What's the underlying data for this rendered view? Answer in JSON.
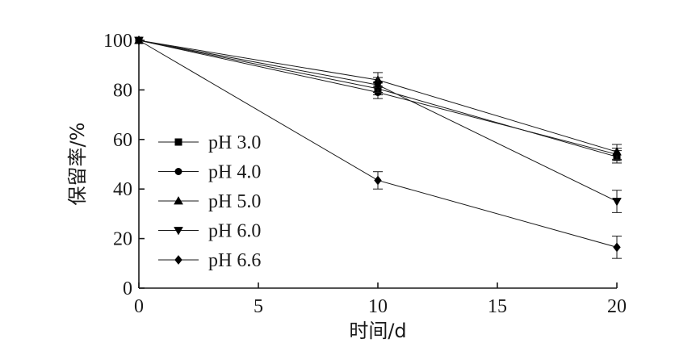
{
  "chart_data": {
    "type": "line",
    "xlabel": "时间/d",
    "ylabel": "保留率/%",
    "xlim": [
      0,
      20
    ],
    "ylim": [
      0,
      100
    ],
    "xticks": [
      0,
      5,
      10,
      15,
      20
    ],
    "yticks": [
      0,
      20,
      40,
      60,
      80,
      100
    ],
    "x": [
      0,
      10,
      20
    ],
    "legend_position": "left-middle",
    "grid": false,
    "series": [
      {
        "name": "pH 3.0",
        "marker": "square",
        "values": [
          100,
          80.5,
          53
        ],
        "errors": [
          0,
          2.5,
          2.5
        ]
      },
      {
        "name": "pH 4.0",
        "marker": "circle",
        "values": [
          100,
          79,
          54
        ],
        "errors": [
          0,
          2.5,
          2.5
        ]
      },
      {
        "name": "pH 5.0",
        "marker": "triangle-up",
        "values": [
          100,
          84,
          55
        ],
        "errors": [
          0,
          3,
          3
        ]
      },
      {
        "name": "pH 6.0",
        "marker": "triangle-down",
        "values": [
          100,
          82,
          35
        ],
        "errors": [
          0,
          3,
          4.5
        ]
      },
      {
        "name": "pH 6.6",
        "marker": "diamond",
        "values": [
          100,
          43.5,
          16.5
        ],
        "errors": [
          0,
          3.5,
          4.5
        ]
      }
    ]
  }
}
